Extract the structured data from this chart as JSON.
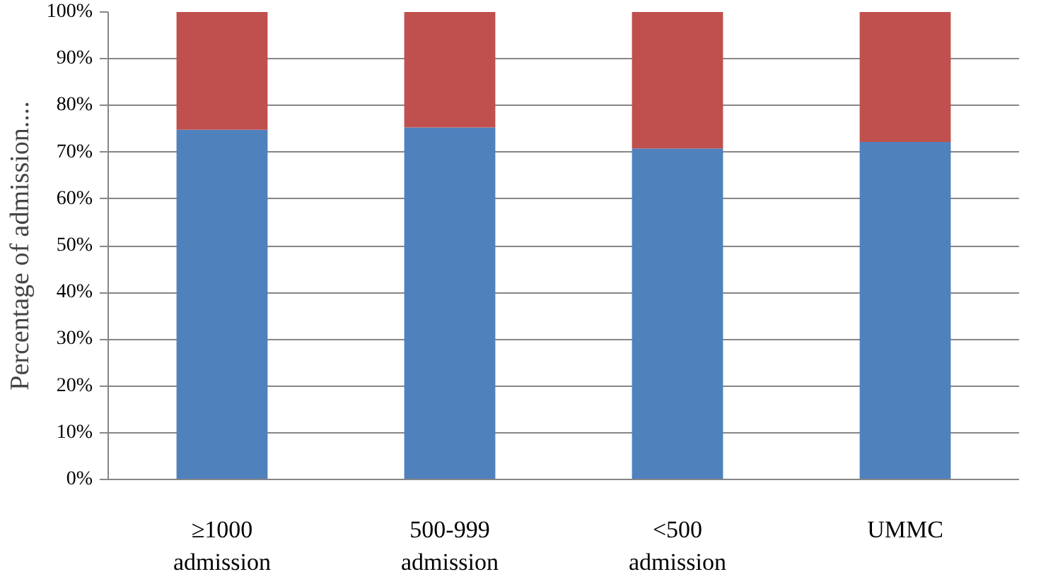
{
  "chart_data": {
    "type": "bar",
    "stacked": true,
    "ylabel": "Percentage of admission....",
    "categories": [
      "≥1000\nadmission",
      "500-999\nadmission",
      "<500\nadmission",
      "UMMC"
    ],
    "series": [
      {
        "color": "#4f81bd",
        "values": [
          74.8,
          75.3,
          70.8,
          72.2
        ]
      },
      {
        "color": "#c0504d",
        "values": [
          25.2,
          24.7,
          29.2,
          27.8
        ]
      }
    ],
    "ylim": [
      0,
      100
    ],
    "yticks": [
      {
        "value": 0,
        "label": "0%"
      },
      {
        "value": 10,
        "label": "10%"
      },
      {
        "value": 20,
        "label": "20%"
      },
      {
        "value": 30,
        "label": "30%"
      },
      {
        "value": 40,
        "label": "40%"
      },
      {
        "value": 50,
        "label": "50%"
      },
      {
        "value": 60,
        "label": "60%"
      },
      {
        "value": 70,
        "label": "70%"
      },
      {
        "value": 80,
        "label": "80%"
      },
      {
        "value": 90,
        "label": "90%"
      },
      {
        "value": 100,
        "label": "100%"
      }
    ],
    "grid": "y"
  }
}
